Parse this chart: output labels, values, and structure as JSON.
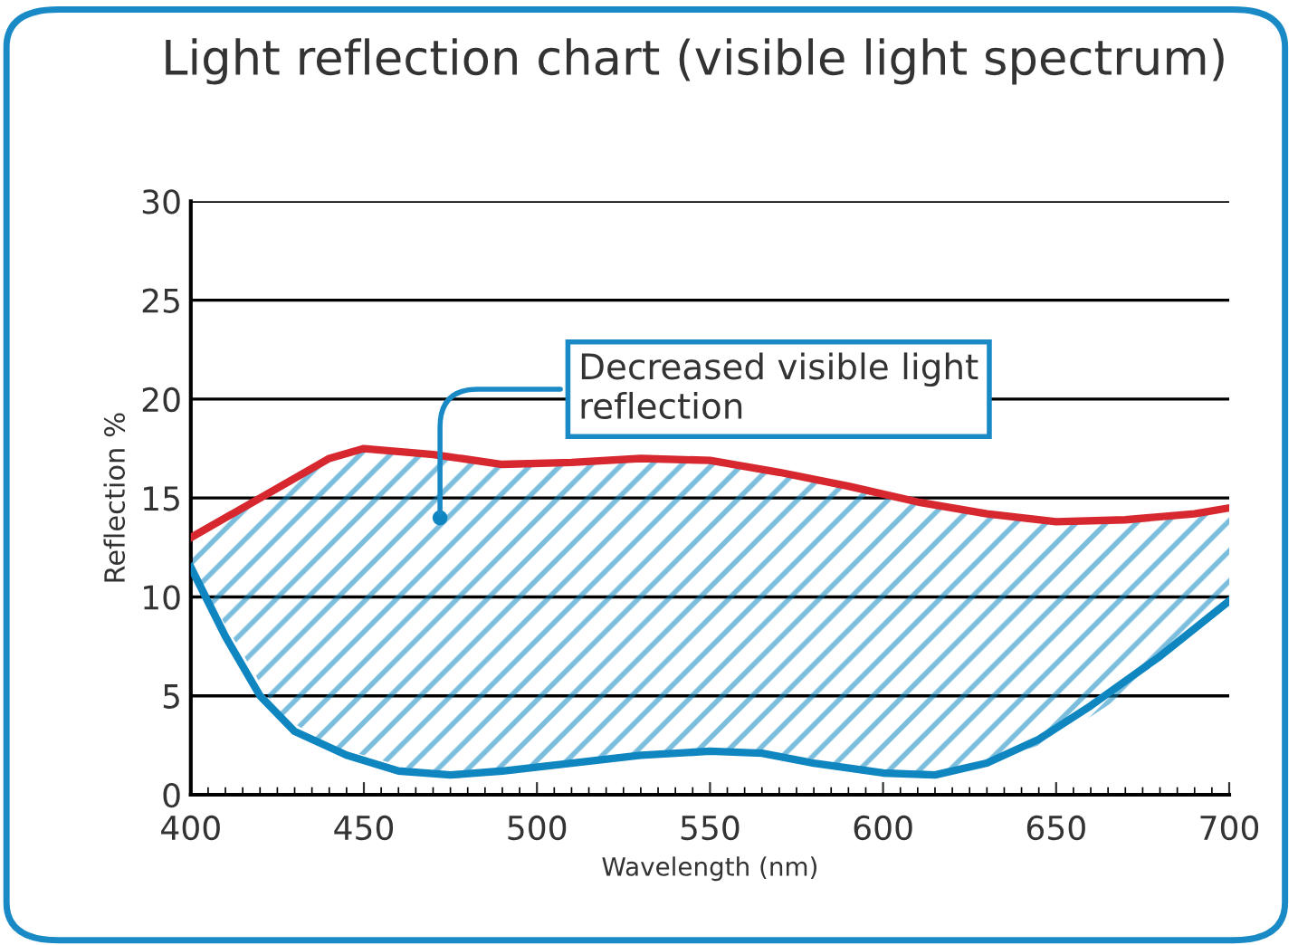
{
  "chart_data": {
    "type": "line",
    "title": "Light reflection chart (visible light spectrum)",
    "xlabel": "Wavelength (nm)",
    "ylabel": "Reflection %",
    "xlim": [
      400,
      700
    ],
    "ylim": [
      0,
      30
    ],
    "xticks": [
      400,
      450,
      500,
      550,
      600,
      650,
      700
    ],
    "yticks": [
      0,
      5,
      10,
      15,
      20,
      25,
      30
    ],
    "grid": "y",
    "marker": "none",
    "line_style": "solid",
    "series": [
      {
        "color": "#d7282f",
        "x": [
          400,
          425,
          440,
          450,
          470,
          490,
          510,
          530,
          550,
          570,
          590,
          610,
          630,
          650,
          670,
          690,
          700
        ],
        "values": [
          13.0,
          15.5,
          17.0,
          17.5,
          17.2,
          16.7,
          16.8,
          17.0,
          16.9,
          16.3,
          15.6,
          14.8,
          14.2,
          13.8,
          13.9,
          14.2,
          14.5
        ],
        "lower": [
          11.5,
          4.2,
          2.4,
          2.0,
          1.0,
          1.2,
          1.6,
          2.0,
          2.2,
          2.1,
          1.5,
          1.0,
          1.6,
          2.8,
          5.1,
          8.1,
          9.8
        ],
        "upper": [
          13.0,
          15.5,
          17.0,
          17.5,
          17.2,
          16.7,
          16.8,
          17.0,
          16.9,
          16.3,
          15.6,
          14.8,
          14.2,
          13.8,
          13.9,
          14.2,
          14.5
        ]
      },
      {
        "color": "#0f86c0",
        "x": [
          400,
          410,
          420,
          430,
          445,
          460,
          475,
          490,
          510,
          530,
          550,
          565,
          580,
          600,
          615,
          630,
          645,
          660,
          680,
          700
        ],
        "values": [
          11.5,
          8.0,
          5.0,
          3.2,
          2.0,
          1.2,
          1.0,
          1.2,
          1.6,
          2.0,
          2.2,
          2.1,
          1.6,
          1.1,
          1.0,
          1.6,
          2.8,
          4.5,
          7.0,
          9.8
        ]
      }
    ],
    "annotations": [
      {
        "text": "Decreased visible light\nreflection",
        "x": 472,
        "y": 14
      }
    ]
  }
}
